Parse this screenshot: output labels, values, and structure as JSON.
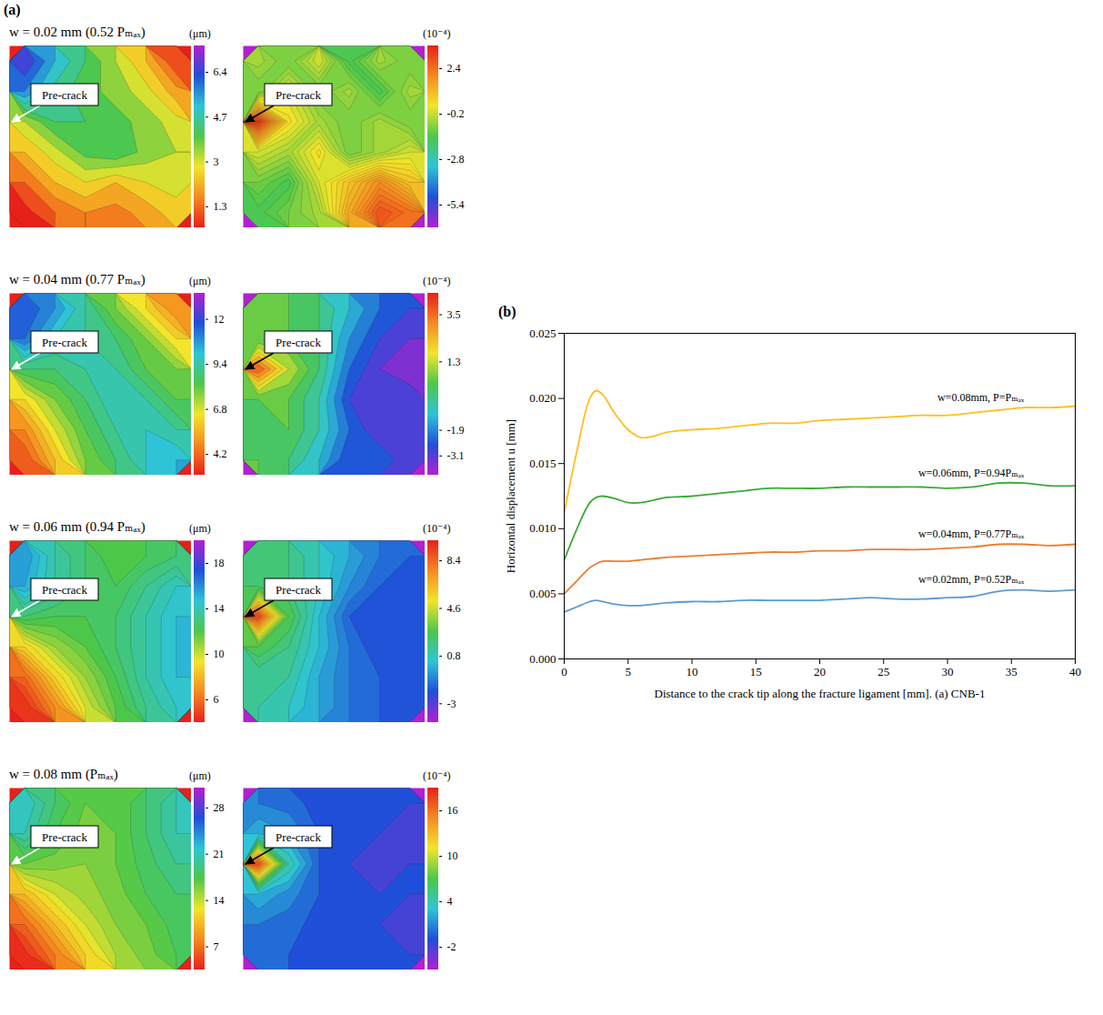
{
  "chart_data": [
    {
      "type": "heatmap",
      "panel": "(a)",
      "title": "w = 0.02 mm (0.52 Pₘₐₓ)",
      "annotations": [
        "Pre-crack"
      ],
      "colorbar": {
        "label": "(μm)",
        "range": [
          0.5,
          7.4
        ],
        "ticks": [
          1.3,
          3.0,
          4.7,
          6.4
        ],
        "colors": [
          "#e8201a",
          "#f58a1f",
          "#f2e52a",
          "#4dc74a",
          "#2ec4d6",
          "#1f4fd8",
          "#b41fd1"
        ]
      },
      "cells": [
        [
          7.0,
          5.5,
          4.5,
          3.5,
          2.5,
          1.0
        ],
        [
          6.0,
          4.8,
          4.2,
          3.8,
          3.2,
          2.2
        ],
        [
          3.5,
          4.5,
          4.5,
          4.2,
          3.8,
          3.2
        ],
        [
          2.5,
          3.3,
          4.2,
          4.5,
          3.8,
          3.5
        ],
        [
          1.5,
          2.5,
          3.0,
          2.5,
          3.0,
          3.2
        ],
        [
          0.8,
          1.5,
          2.0,
          1.8,
          2.2,
          2.8
        ]
      ]
    },
    {
      "type": "heatmap",
      "annotations": [
        "Pre-crack"
      ],
      "colorbar": {
        "label": "(10⁻⁴)",
        "range": [
          -6.7,
          3.7
        ],
        "ticks": [
          -5.4,
          -2.8,
          -0.2,
          2.4
        ],
        "colors": [
          "#b41fd1",
          "#1f4fd8",
          "#2ec4d6",
          "#4dc74a",
          "#f2e52a",
          "#f58a1f",
          "#e8201a"
        ]
      },
      "cells": [
        [
          -0.5,
          -1,
          0,
          -1.5,
          -0.5,
          -1
        ],
        [
          -1,
          0,
          -1,
          -0.5,
          -1.5,
          -0.5
        ],
        [
          3.5,
          0.5,
          -0.5,
          -1,
          -0.5,
          -1
        ],
        [
          0,
          -0.5,
          0.5,
          -1,
          -0.5,
          0
        ],
        [
          -1,
          -1.5,
          0,
          1,
          2,
          1
        ],
        [
          -1.5,
          -1,
          -0.5,
          1.5,
          3,
          2.5
        ]
      ]
    },
    {
      "type": "heatmap",
      "title": "w = 0.04 mm (0.77 Pₘₐₓ)",
      "annotations": [
        "Pre-crack"
      ],
      "colorbar": {
        "label": "(μm)",
        "range": [
          3,
          13.5
        ],
        "ticks": [
          4.2,
          6.8,
          9.4,
          12
        ],
        "colors": [
          "#e8201a",
          "#f58a1f",
          "#f2e52a",
          "#4dc74a",
          "#2ec4d6",
          "#1f4fd8",
          "#b41fd1"
        ]
      },
      "cells": [
        [
          12,
          11,
          9.5,
          8,
          6.5,
          5
        ],
        [
          11.5,
          10,
          9.5,
          9,
          8,
          6.5
        ],
        [
          9,
          9,
          9.5,
          9.5,
          8.5,
          8
        ],
        [
          6.5,
          8,
          9,
          10,
          9.5,
          8.5
        ],
        [
          5,
          7,
          8.5,
          9.5,
          10,
          9.5
        ],
        [
          4,
          6,
          8,
          9,
          10,
          10.5
        ]
      ]
    },
    {
      "type": "heatmap",
      "annotations": [
        "Pre-crack"
      ],
      "colorbar": {
        "label": "(10⁻⁴)",
        "range": [
          -4,
          4.5
        ],
        "ticks": [
          -3.1,
          -1.9,
          1.3,
          3.5
        ],
        "colors": [
          "#b41fd1",
          "#1f4fd8",
          "#2ec4d6",
          "#4dc74a",
          "#f2e52a",
          "#f58a1f",
          "#e8201a"
        ]
      },
      "cells": [
        [
          0.5,
          0.5,
          0,
          -1,
          -2,
          -2.5
        ],
        [
          0.5,
          0.5,
          0,
          -1.5,
          -2.5,
          -3
        ],
        [
          4,
          1.5,
          0,
          -2,
          -3,
          -3.5
        ],
        [
          0.5,
          0.5,
          -0.5,
          -2.5,
          -3,
          -2.5
        ],
        [
          0,
          0.5,
          -0.5,
          -2,
          -3,
          -3
        ],
        [
          0.5,
          0,
          -1,
          -2.5,
          -2,
          -3
        ]
      ]
    },
    {
      "type": "heatmap",
      "title": "w = 0.06 mm (0.94 Pₘₐₓ)",
      "annotations": [
        "Pre-crack"
      ],
      "colorbar": {
        "label": "(μm)",
        "range": [
          4,
          20
        ],
        "ticks": [
          6,
          10,
          14,
          18
        ],
        "colors": [
          "#e8201a",
          "#f58a1f",
          "#f2e52a",
          "#4dc74a",
          "#2ec4d6",
          "#1f4fd8",
          "#b41fd1"
        ]
      },
      "cells": [
        [
          16,
          14,
          13,
          12,
          12.5,
          13
        ],
        [
          15.5,
          14,
          13,
          12.5,
          13.5,
          14.5
        ],
        [
          13,
          12.5,
          12.5,
          13,
          14,
          15
        ],
        [
          9,
          11,
          12,
          13,
          14,
          15
        ],
        [
          6,
          9,
          11,
          12.5,
          14,
          15
        ],
        [
          4.5,
          7,
          10,
          12,
          13.5,
          14.5
        ]
      ]
    },
    {
      "type": "heatmap",
      "annotations": [
        "Pre-crack"
      ],
      "colorbar": {
        "label": "(10⁻⁴)",
        "range": [
          -4.5,
          10
        ],
        "ticks": [
          -3,
          0.8,
          4.6,
          8.4
        ],
        "colors": [
          "#b41fd1",
          "#1f4fd8",
          "#2ec4d6",
          "#4dc74a",
          "#f2e52a",
          "#f58a1f",
          "#e8201a"
        ]
      },
      "cells": [
        [
          2,
          2,
          1,
          0,
          -1,
          -1.5
        ],
        [
          2.5,
          2,
          1,
          -0.5,
          -1.5,
          -2
        ],
        [
          9.5,
          3,
          0.5,
          -1.5,
          -2,
          -2
        ],
        [
          3,
          2,
          0.5,
          -1,
          -2,
          -2
        ],
        [
          1.5,
          1.5,
          0,
          -1,
          -1.5,
          -2
        ],
        [
          1.5,
          1,
          0,
          -1,
          -1.5,
          -2
        ]
      ]
    },
    {
      "type": "heatmap",
      "title": "w = 0.08 mm (Pₘₐₓ)",
      "annotations": [
        "Pre-crack"
      ],
      "colorbar": {
        "label": "(μm)",
        "range": [
          3.5,
          31
        ],
        "ticks": [
          7,
          14,
          21,
          28
        ],
        "colors": [
          "#e8201a",
          "#f58a1f",
          "#f2e52a",
          "#4dc74a",
          "#2ec4d6",
          "#1f4fd8",
          "#b41fd1"
        ]
      },
      "cells": [
        [
          22,
          19,
          17,
          17,
          19,
          21
        ],
        [
          21,
          18,
          16.5,
          17,
          19,
          21
        ],
        [
          17,
          16.5,
          16,
          17,
          18.5,
          20
        ],
        [
          11,
          14,
          15.5,
          16.5,
          18,
          19
        ],
        [
          7,
          11,
          14,
          16,
          17,
          18.5
        ],
        [
          4.5,
          8,
          12,
          15,
          16.5,
          18
        ]
      ]
    },
    {
      "type": "heatmap",
      "annotations": [
        "Pre-crack"
      ],
      "colorbar": {
        "label": "(10⁻⁴)",
        "range": [
          -5,
          19
        ],
        "ticks": [
          -2,
          4,
          10,
          16
        ],
        "colors": [
          "#b41fd1",
          "#1f4fd8",
          "#2ec4d6",
          "#4dc74a",
          "#f2e52a",
          "#f58a1f",
          "#e8201a"
        ]
      },
      "cells": [
        [
          1,
          0.5,
          -0.5,
          -1,
          -1,
          -1
        ],
        [
          3,
          2,
          0,
          -1,
          -1,
          -1.5
        ],
        [
          18,
          5,
          0,
          -1,
          -1.5,
          -1
        ],
        [
          3,
          1.5,
          0,
          -1,
          -1,
          -1
        ],
        [
          1,
          0.5,
          -0.5,
          -1,
          -1,
          -1.5
        ],
        [
          0.5,
          0,
          -1,
          -1,
          -1,
          -1
        ]
      ]
    },
    {
      "type": "line",
      "panel": "(b)",
      "xlabel": "Distance to the crack tip along the fracture ligament [mm]. (a) CNB-1",
      "ylabel": "Horizontal displacement u [mm]",
      "xlim": [
        0,
        40
      ],
      "xticks": [
        0,
        5,
        10,
        15,
        20,
        25,
        30,
        35,
        40
      ],
      "ylim": [
        0,
        0.025
      ],
      "yticks": [
        {
          "value": 0,
          "label": "0.000"
        },
        {
          "value": 0.005,
          "label": "0.005"
        },
        {
          "value": 0.01,
          "label": "0.010"
        },
        {
          "value": 0.015,
          "label": "0.015"
        },
        {
          "value": 0.02,
          "label": "0.020"
        },
        {
          "value": 0.025,
          "label": "0.025"
        }
      ],
      "x": [
        0,
        1,
        2,
        2.5,
        3,
        4,
        5,
        6,
        7,
        8,
        10,
        12,
        14,
        16,
        18,
        20,
        22,
        24,
        26,
        28,
        30,
        32,
        34,
        36,
        38,
        40
      ],
      "series": [
        {
          "name": "w=0.08mm, P=Pₘₐₓ",
          "color": "#ffbf1f",
          "values": [
            0.0112,
            0.016,
            0.02,
            0.0206,
            0.0203,
            0.0188,
            0.0176,
            0.017,
            0.0171,
            0.0174,
            0.0176,
            0.0177,
            0.0179,
            0.0181,
            0.0181,
            0.0183,
            0.0184,
            0.0185,
            0.0186,
            0.0187,
            0.0187,
            0.0189,
            0.0191,
            0.0193,
            0.0193,
            0.0194
          ]
        },
        {
          "name": "w=0.06mm, P=0.94Pₘₐₓ",
          "color": "#3aaa35",
          "values": [
            0.0076,
            0.01,
            0.012,
            0.0124,
            0.0125,
            0.0123,
            0.012,
            0.012,
            0.0122,
            0.0124,
            0.0125,
            0.0127,
            0.0129,
            0.0131,
            0.0131,
            0.0131,
            0.0132,
            0.0132,
            0.0132,
            0.0132,
            0.0131,
            0.0132,
            0.0135,
            0.0135,
            0.0133,
            0.0133
          ]
        },
        {
          "name": "w=0.04mm, P=0.77Pₘₐₓ",
          "color": "#ed7d31",
          "values": [
            0.005,
            0.006,
            0.007,
            0.0073,
            0.0075,
            0.0075,
            0.0075,
            0.0076,
            0.0077,
            0.0078,
            0.0079,
            0.008,
            0.0081,
            0.0082,
            0.0082,
            0.0083,
            0.0083,
            0.0084,
            0.0084,
            0.0084,
            0.0085,
            0.0086,
            0.0088,
            0.0088,
            0.0087,
            0.0088
          ]
        },
        {
          "name": "w=0.02mm, P=0.52Pₘₐₓ",
          "color": "#5b9bd5",
          "values": [
            0.0036,
            0.004,
            0.0044,
            0.0045,
            0.0044,
            0.0042,
            0.0041,
            0.0041,
            0.0042,
            0.0043,
            0.0044,
            0.0044,
            0.0045,
            0.0045,
            0.0045,
            0.0045,
            0.0046,
            0.0047,
            0.0046,
            0.0046,
            0.0047,
            0.0048,
            0.0052,
            0.0053,
            0.0052,
            0.0053
          ]
        }
      ]
    }
  ]
}
